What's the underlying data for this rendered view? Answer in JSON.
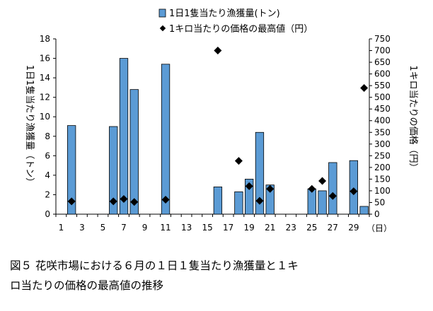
{
  "chart_data": {
    "type": "bar",
    "x_categories": [
      1,
      2,
      3,
      4,
      5,
      6,
      7,
      8,
      9,
      10,
      11,
      12,
      13,
      14,
      15,
      16,
      17,
      18,
      19,
      20,
      21,
      22,
      23,
      24,
      25,
      26,
      27,
      28,
      29,
      30
    ],
    "x_tick_labels": [
      "1",
      "3",
      "5",
      "7",
      "9",
      "11",
      "13",
      "15",
      "17",
      "19",
      "21",
      "23",
      "25",
      "27",
      "29"
    ],
    "x_unit": "（日）",
    "ylim_left": [
      0,
      18
    ],
    "yticks_left": [
      "0",
      "2",
      "4",
      "6",
      "8",
      "10",
      "12",
      "14",
      "16",
      "18"
    ],
    "ylim_right": [
      0,
      750
    ],
    "yticks_right": [
      "0",
      "50",
      "100",
      "150",
      "200",
      "250",
      "300",
      "350",
      "400",
      "450",
      "500",
      "550",
      "600",
      "650",
      "700",
      "750"
    ],
    "ylabel_left": "1日1隻当たり漁獲量（トン）",
    "ylabel_right": "1キロ当たりの価格（円）",
    "series": [
      {
        "name": "1日1隻当たり漁獲量(トン)",
        "type": "bar",
        "axis": "left",
        "color": "#5b9bd5",
        "edge_color": "#000000",
        "data": [
          {
            "x": 2,
            "y": 9.1
          },
          {
            "x": 6,
            "y": 9.0
          },
          {
            "x": 7,
            "y": 16.0
          },
          {
            "x": 8,
            "y": 12.8
          },
          {
            "x": 11,
            "y": 15.4
          },
          {
            "x": 16,
            "y": 2.8
          },
          {
            "x": 18,
            "y": 2.3
          },
          {
            "x": 19,
            "y": 3.6
          },
          {
            "x": 20,
            "y": 8.4
          },
          {
            "x": 21,
            "y": 3.0
          },
          {
            "x": 25,
            "y": 2.6
          },
          {
            "x": 26,
            "y": 2.4
          },
          {
            "x": 27,
            "y": 5.3
          },
          {
            "x": 29,
            "y": 5.5
          },
          {
            "x": 30,
            "y": 0.8
          }
        ]
      },
      {
        "name": "1キロ当たりの価格の最高値（円）",
        "type": "scatter",
        "axis": "right",
        "marker": "diamond",
        "color": "#000000",
        "data": [
          {
            "x": 2,
            "y": 55
          },
          {
            "x": 6,
            "y": 55
          },
          {
            "x": 7,
            "y": 65
          },
          {
            "x": 8,
            "y": 52
          },
          {
            "x": 11,
            "y": 62
          },
          {
            "x": 16,
            "y": 700
          },
          {
            "x": 18,
            "y": 228
          },
          {
            "x": 19,
            "y": 120
          },
          {
            "x": 20,
            "y": 57
          },
          {
            "x": 21,
            "y": 108
          },
          {
            "x": 25,
            "y": 108
          },
          {
            "x": 26,
            "y": 142
          },
          {
            "x": 27,
            "y": 78
          },
          {
            "x": 29,
            "y": 98
          },
          {
            "x": 30,
            "y": 540
          }
        ]
      }
    ],
    "legend_position": "top-center",
    "grid": false
  },
  "caption": {
    "line1": "図５ 花咲市場における６月の１日１隻当たり漁獲量と１キ",
    "line2": "ロ当たりの価格の最高値の推移"
  }
}
